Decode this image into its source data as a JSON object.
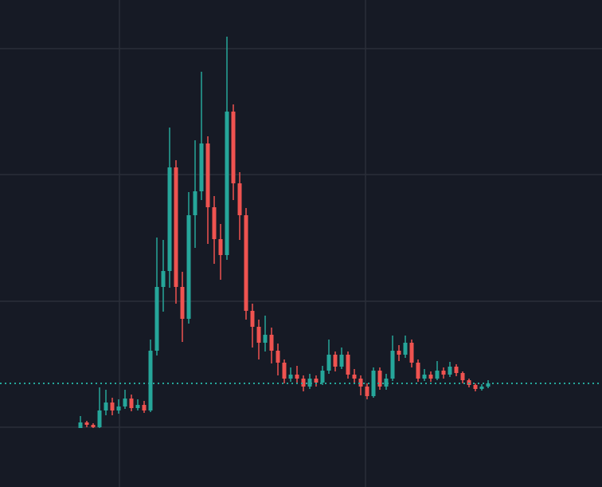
{
  "chart_data": {
    "type": "candlestick",
    "open": [
      7.4,
      8.1,
      7.8,
      7.5,
      9.6,
      10.6,
      9.6,
      10.1,
      11.1,
      9.9,
      10.3,
      9.6,
      17.1,
      25.1,
      27.1,
      40.1,
      25.1,
      21.1,
      34.1,
      37.1,
      43.1,
      35.1,
      31.1,
      29.1,
      47.1,
      38.1,
      34.1,
      22.1,
      20.1,
      18.1,
      19.1,
      17.1,
      15.6,
      13.6,
      14.1,
      13.6,
      12.6,
      13.6,
      13.1,
      14.6,
      16.6,
      15.1,
      16.6,
      14.1,
      13.6,
      12.6,
      11.4,
      14.6,
      12.6,
      13.6,
      17.1,
      16.6,
      18.1,
      15.6,
      13.6,
      14.1,
      13.6,
      14.6,
      14.1,
      15.1,
      14.3,
      13.4,
      12.8,
      12.3,
      12.6
    ],
    "high": [
      8.9,
      8.3,
      8.0,
      12.5,
      12.2,
      11.2,
      11.0,
      12.2,
      11.6,
      11.0,
      10.8,
      18.5,
      31.3,
      31.0,
      45.1,
      41.0,
      27.0,
      37.0,
      43.5,
      52.1,
      44.0,
      36.5,
      33.0,
      56.5,
      48.0,
      39.5,
      35.0,
      23.0,
      21.0,
      21.5,
      20.0,
      18.0,
      16.0,
      15.0,
      15.2,
      14.0,
      14.2,
      14.0,
      15.2,
      18.5,
      17.0,
      17.5,
      17.0,
      14.8,
      14.0,
      13.0,
      15.0,
      15.0,
      14.2,
      19.0,
      17.8,
      19.0,
      18.5,
      16.0,
      14.8,
      14.5,
      15.8,
      15.0,
      15.7,
      15.4,
      14.5,
      13.6,
      13.0,
      12.9,
      13.4
    ],
    "low": [
      7.4,
      7.5,
      7.4,
      7.4,
      9.0,
      9.0,
      9.2,
      9.8,
      9.5,
      9.6,
      9.3,
      9.4,
      16.5,
      22.0,
      25.0,
      23.0,
      18.2,
      20.5,
      30.0,
      36.0,
      30.5,
      28.0,
      26.0,
      28.5,
      36.0,
      31.0,
      21.0,
      17.5,
      16.0,
      17.0,
      15.5,
      14.0,
      13.0,
      13.2,
      13.0,
      12.0,
      12.3,
      12.6,
      12.8,
      14.2,
      14.5,
      14.8,
      13.6,
      13.0,
      11.5,
      11.0,
      11.2,
      12.2,
      12.2,
      13.3,
      15.8,
      16.2,
      15.0,
      13.2,
      13.3,
      13.2,
      13.4,
      13.6,
      13.8,
      13.9,
      13.0,
      12.5,
      12.0,
      12.1,
      12.4
    ],
    "close": [
      8.1,
      7.8,
      7.5,
      9.6,
      10.6,
      9.6,
      10.1,
      11.1,
      9.9,
      10.3,
      9.6,
      17.1,
      25.1,
      27.1,
      40.1,
      25.1,
      21.1,
      34.1,
      37.1,
      43.1,
      35.1,
      31.1,
      29.1,
      47.1,
      38.1,
      34.1,
      22.1,
      20.1,
      18.1,
      19.1,
      17.1,
      15.6,
      13.6,
      14.1,
      13.6,
      12.6,
      13.6,
      13.1,
      14.6,
      16.6,
      15.1,
      16.6,
      14.1,
      13.6,
      12.6,
      11.4,
      14.6,
      12.6,
      13.6,
      17.1,
      16.6,
      18.1,
      15.6,
      13.6,
      14.1,
      13.6,
      14.6,
      14.1,
      15.1,
      14.3,
      13.4,
      12.8,
      12.3,
      12.6,
      13.0
    ],
    "ylim": [
      0,
      61.1
    ],
    "up_color": "#26a69a",
    "down_color": "#ef5350",
    "last_price_line": true
  }
}
